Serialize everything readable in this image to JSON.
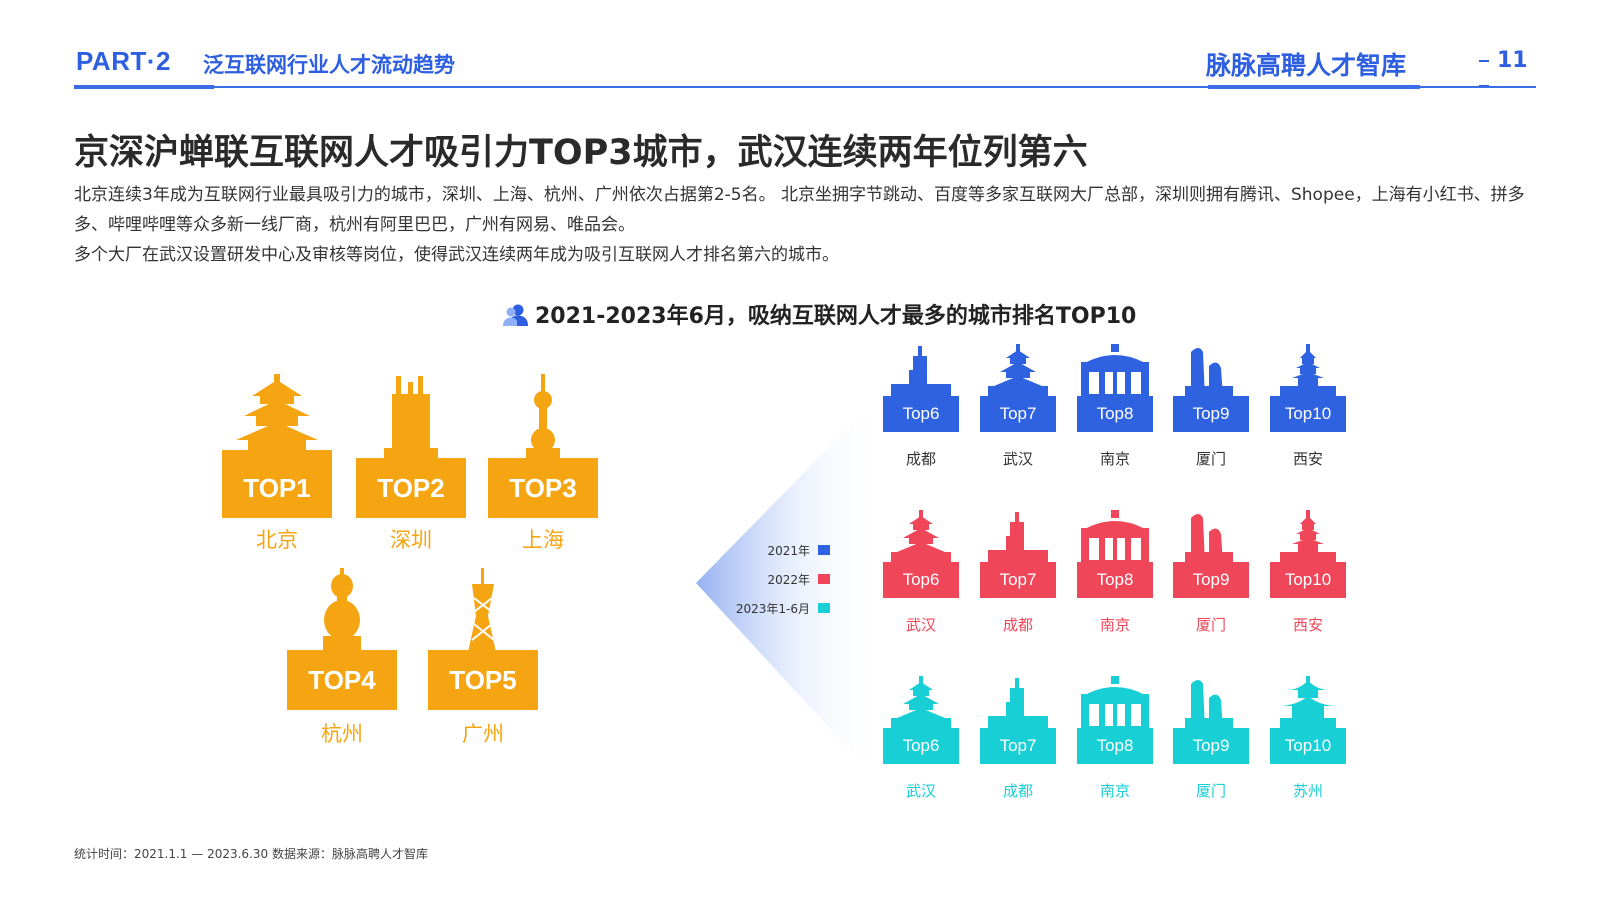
{
  "header": {
    "part": "PART·2",
    "section": "泛互联网行业人才流动趋势",
    "brand": "脉脉高聘人才智库",
    "page": "11"
  },
  "title": "京深沪蝉联互联网人才吸引力TOP3城市，武汉连续两年位列第六",
  "description": {
    "line1": "北京连续3年成为互联网行业最具吸引力的城市，深圳、上海、杭州、广州依次占据第2-5名。 北京坐拥字节跳动、百度等多家互联网大厂总部，深圳则拥有腾讯、Shopee，上海有小红书、拼多多、哔哩哔哩等众多新一线厂商，杭州有阿里巴巴，广州有网易、唯品会。",
    "line2": "多个大厂在武汉设置研发中心及审核等岗位，使得武汉连续两年成为吸引互联网人才排名第六的城市。"
  },
  "chart_title": "2021-2023年6月，吸纳互联网人才最多的城市排名TOP10",
  "top5": [
    {
      "rank": "TOP1",
      "city": "北京",
      "icon": "temple-of-heaven-icon"
    },
    {
      "rank": "TOP2",
      "city": "深圳",
      "icon": "skyscraper-icon"
    },
    {
      "rank": "TOP3",
      "city": "上海",
      "icon": "pearl-tower-icon"
    },
    {
      "rank": "TOP4",
      "city": "杭州",
      "icon": "pagoda-icon"
    },
    {
      "rank": "TOP5",
      "city": "广州",
      "icon": "canton-tower-icon"
    }
  ],
  "legend": [
    {
      "label": "2021年",
      "color": "#2f62e0"
    },
    {
      "label": "2022年",
      "color": "#f0465a"
    },
    {
      "label": "2023年1-6月",
      "color": "#18cfd6"
    }
  ],
  "rankings": [
    {
      "year": "2021年",
      "color": "#2f62e0",
      "items": [
        {
          "rank": "Top6",
          "city": "成都",
          "icon": "tower-icon"
        },
        {
          "rank": "Top7",
          "city": "武汉",
          "icon": "crane-tower-icon"
        },
        {
          "rank": "Top8",
          "city": "南京",
          "icon": "gate-icon"
        },
        {
          "rank": "Top9",
          "city": "厦门",
          "icon": "twin-towers-icon"
        },
        {
          "rank": "Top10",
          "city": "西安",
          "icon": "pagoda-icon"
        }
      ]
    },
    {
      "year": "2022年",
      "color": "#f0465a",
      "items": [
        {
          "rank": "Top6",
          "city": "武汉",
          "icon": "crane-tower-icon"
        },
        {
          "rank": "Top7",
          "city": "成都",
          "icon": "tower-icon"
        },
        {
          "rank": "Top8",
          "city": "南京",
          "icon": "gate-icon"
        },
        {
          "rank": "Top9",
          "city": "厦门",
          "icon": "twin-towers-icon"
        },
        {
          "rank": "Top10",
          "city": "西安",
          "icon": "pagoda-icon"
        }
      ]
    },
    {
      "year": "2023年1-6月",
      "color": "#18cfd6",
      "items": [
        {
          "rank": "Top6",
          "city": "武汉",
          "icon": "crane-tower-icon"
        },
        {
          "rank": "Top7",
          "city": "成都",
          "icon": "tower-icon"
        },
        {
          "rank": "Top8",
          "city": "南京",
          "icon": "gate-icon"
        },
        {
          "rank": "Top9",
          "city": "厦门",
          "icon": "twin-towers-icon"
        },
        {
          "rank": "Top10",
          "city": "苏州",
          "icon": "pavilion-icon"
        }
      ]
    }
  ],
  "footnote": "统计时间：2021.1.1 — 2023.6.30   数据来源：脉脉高聘人才智库",
  "colors": {
    "accent": "#2e5fe0",
    "top5": "#f5a512"
  }
}
